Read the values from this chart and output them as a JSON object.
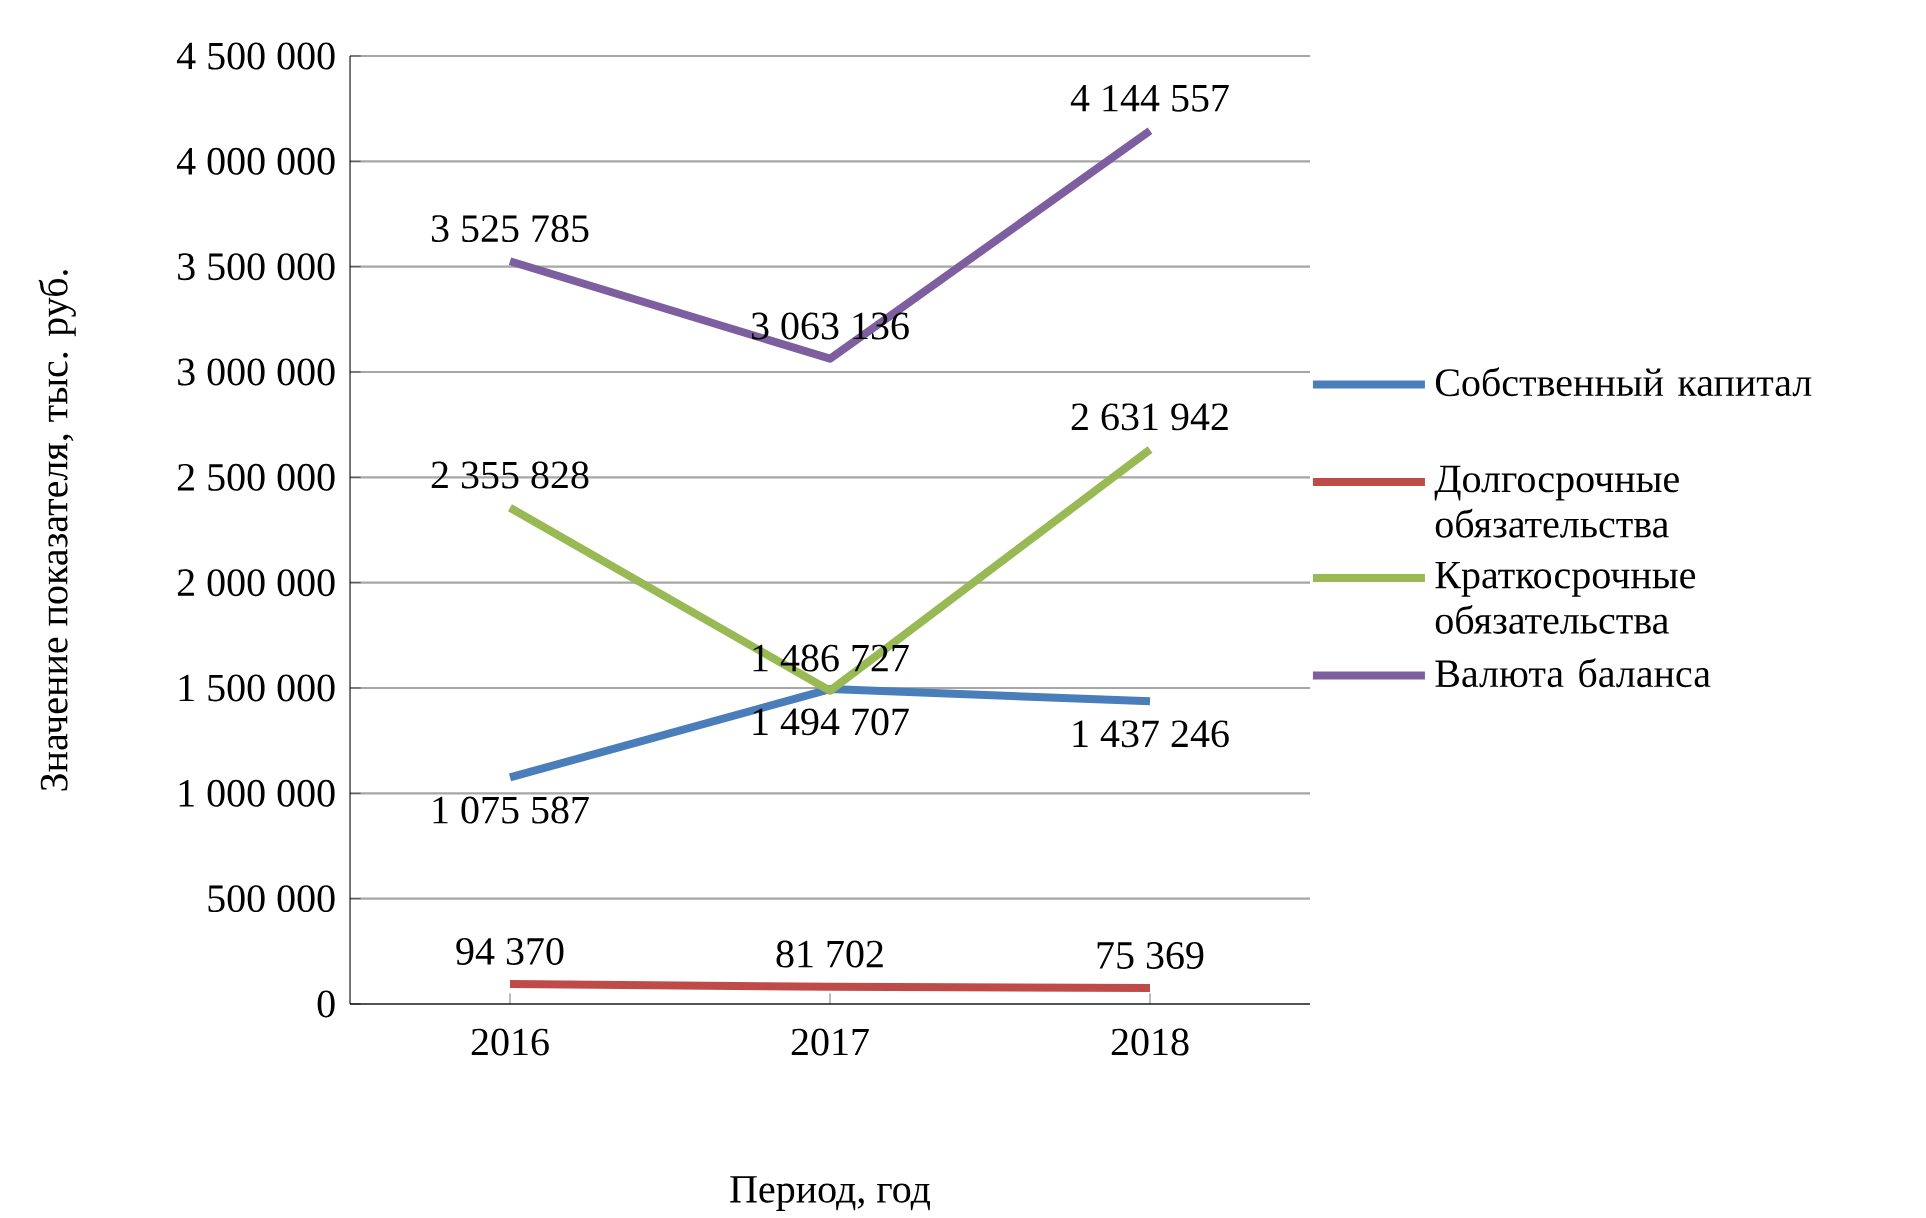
{
  "chart_data": {
    "type": "line",
    "xlabel": "Период, год",
    "ylabel": "Значение показателя, тыс. руб.",
    "categories": [
      "2016",
      "2017",
      "2018"
    ],
    "series": [
      {
        "name": "Собственный капитал",
        "color": "#4a7ebb",
        "values": [
          1075587,
          1494707,
          1437246
        ],
        "value_labels": [
          "1 075 587",
          "1 494 707",
          "1 437 246"
        ]
      },
      {
        "name": "Долгосрочные обязательства",
        "color": "#be4b48",
        "values": [
          94370,
          81702,
          75369
        ],
        "value_labels": [
          "94 370",
          "81 702",
          "75 369"
        ]
      },
      {
        "name": "Краткосрочные обязательства",
        "color": "#98b954",
        "values": [
          2355828,
          1486727,
          2631942
        ],
        "value_labels": [
          "2 355 828",
          "1 486 727",
          "2 631 942"
        ]
      },
      {
        "name": "Валюта баланса",
        "color": "#7d5fa0",
        "values": [
          3525785,
          3063136,
          4144557
        ],
        "value_labels": [
          "3 525 785",
          "3 063 136",
          "4 144 557"
        ]
      }
    ],
    "ylim": [
      0,
      4500000
    ],
    "yticks": [
      {
        "value": 0,
        "label": "0"
      },
      {
        "value": 500000,
        "label": "500 000"
      },
      {
        "value": 1000000,
        "label": "1 000 000"
      },
      {
        "value": 1500000,
        "label": "1 500 000"
      },
      {
        "value": 2000000,
        "label": "2 000 000"
      },
      {
        "value": 2500000,
        "label": "2 500 000"
      },
      {
        "value": 3000000,
        "label": "3 000 000"
      },
      {
        "value": 3500000,
        "label": "3 500 000"
      },
      {
        "value": 4000000,
        "label": "4 000 000"
      },
      {
        "value": 4500000,
        "label": "4 500 000"
      }
    ],
    "grid": "y",
    "legend": "right",
    "marker": "none",
    "line_style": "solid"
  }
}
